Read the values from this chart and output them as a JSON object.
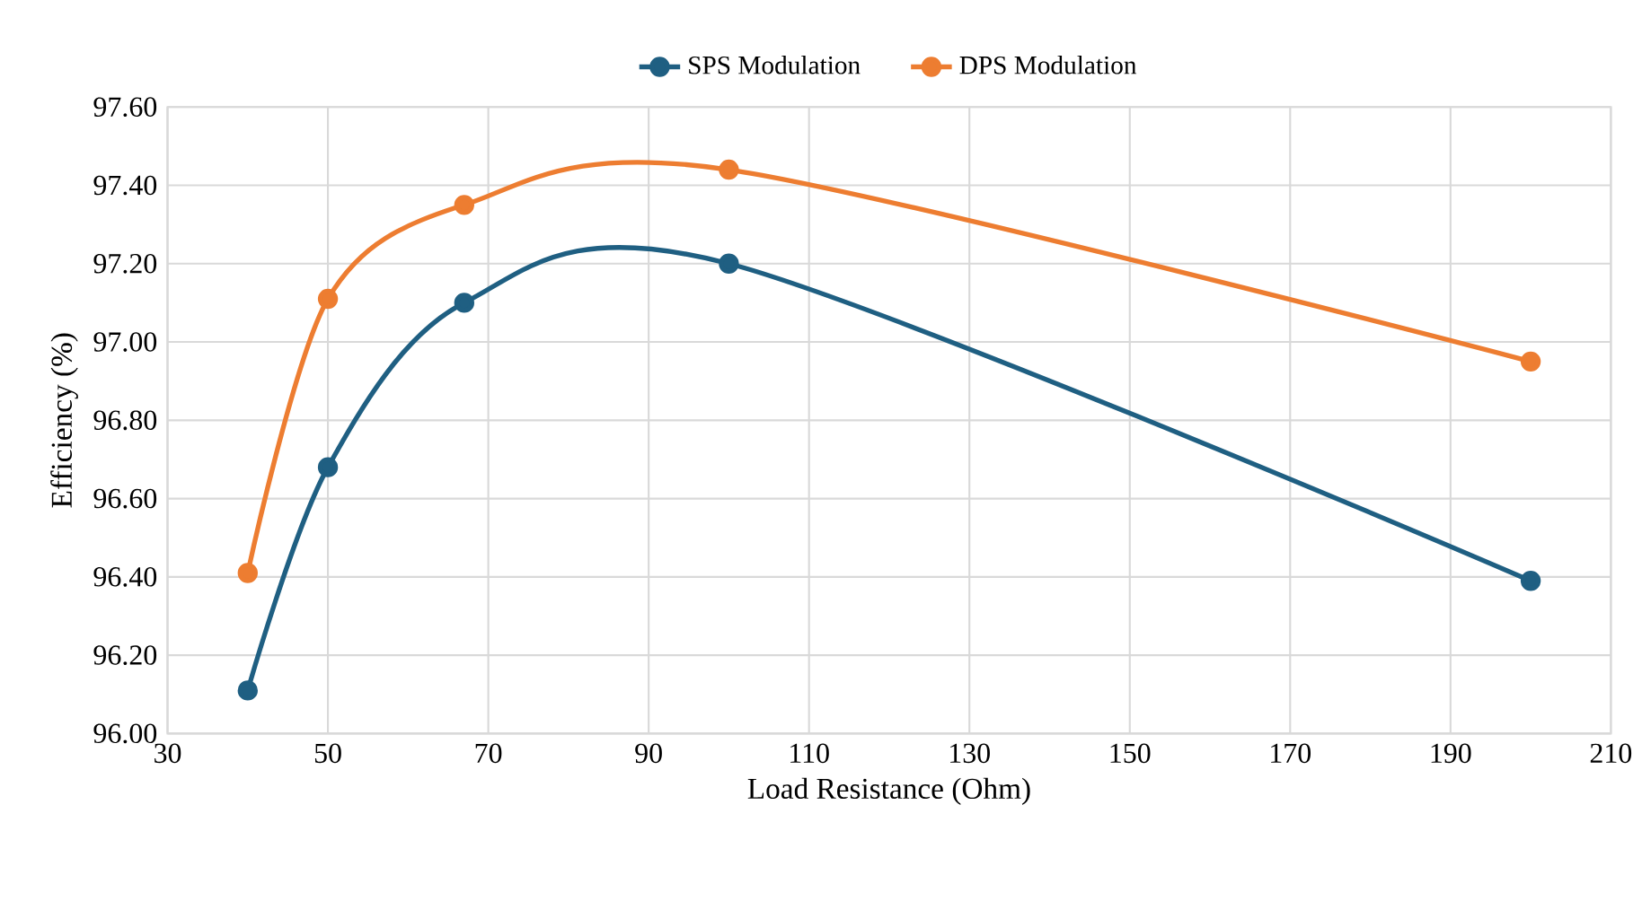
{
  "chart_data": {
    "type": "line",
    "xlabel": "Load Resistance (Ohm)",
    "ylabel": "Efficiency (%)",
    "x": [
      40,
      50,
      67,
      100,
      200
    ],
    "series": [
      {
        "name": "SPS Modulation",
        "color": "#1f5f82",
        "values": [
          96.11,
          96.68,
          97.1,
          97.2,
          96.39
        ]
      },
      {
        "name": "DPS Modulation",
        "color": "#ed7d31",
        "values": [
          96.41,
          97.11,
          97.35,
          97.44,
          96.95
        ]
      }
    ],
    "xlim": [
      30,
      210
    ],
    "xticks": [
      30,
      50,
      70,
      90,
      110,
      130,
      150,
      170,
      190,
      210
    ],
    "ylim": [
      96.0,
      97.6
    ],
    "yticks": [
      {
        "value": 96.0,
        "label": "96.00"
      },
      {
        "value": 96.2,
        "label": "96.20"
      },
      {
        "value": 96.4,
        "label": "96.40"
      },
      {
        "value": 96.6,
        "label": "96.60"
      },
      {
        "value": 96.8,
        "label": "96.80"
      },
      {
        "value": 97.0,
        "label": "97.00"
      },
      {
        "value": 97.2,
        "label": "97.20"
      },
      {
        "value": 97.4,
        "label": "97.40"
      },
      {
        "value": 97.6,
        "label": "97.60"
      }
    ],
    "grid": true,
    "legend": "top",
    "marker": "circle",
    "line_style": "solid"
  }
}
